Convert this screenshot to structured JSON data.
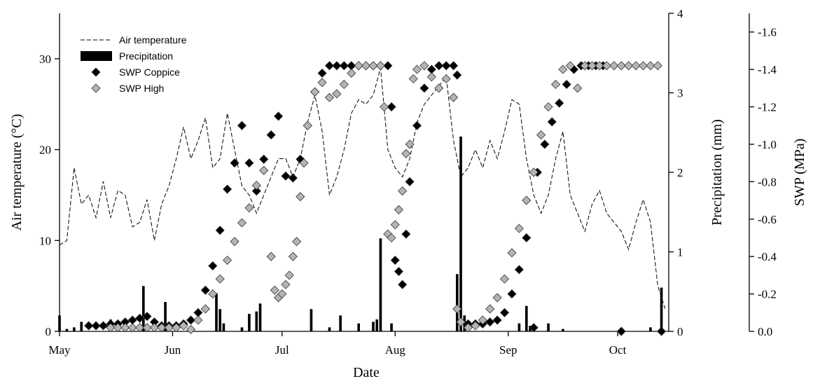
{
  "chart_data": {
    "type": "combo",
    "x_label": "Date",
    "y_label": "Air temperature (°C)",
    "y2_label": "Precipitation (mm)",
    "y3_label": "SWP (MPa)",
    "xlim": [
      0,
      167
    ],
    "xticks": [
      {
        "value": 0,
        "label": "May"
      },
      {
        "value": 31,
        "label": "Jun"
      },
      {
        "value": 61,
        "label": "Jul"
      },
      {
        "value": 92,
        "label": "Aug"
      },
      {
        "value": 123,
        "label": "Sep"
      },
      {
        "value": 153,
        "label": "Oct"
      }
    ],
    "ylim": [
      0,
      35
    ],
    "yticks": [
      0,
      10,
      20,
      30
    ],
    "y2lim": [
      0,
      4
    ],
    "y2ticks": [
      0,
      1,
      2,
      3,
      4
    ],
    "y3lim": [
      0,
      -1.7
    ],
    "y3ticks": [
      {
        "value": 0,
        "label": "0.0"
      },
      -0.2,
      -0.4,
      -0.6,
      -0.8,
      {
        "value": -1,
        "label": "-1.0"
      },
      -1.2,
      -1.4,
      -1.6
    ],
    "legend": "top-left",
    "series": [
      {
        "name": "Air temperature",
        "kind": "line",
        "axis": "y",
        "color": "#000000",
        "x": [
          0,
          2,
          4,
          6,
          8,
          10,
          12,
          14,
          16,
          18,
          20,
          22,
          24,
          26,
          28,
          30,
          32,
          34,
          36,
          38,
          40,
          42,
          44,
          46,
          48,
          50,
          52,
          54,
          56,
          58,
          60,
          62,
          64,
          66,
          68,
          70,
          72,
          74,
          76,
          78,
          80,
          82,
          84,
          86,
          88,
          90,
          92,
          94,
          96,
          98,
          100,
          102,
          104,
          106,
          108,
          110,
          112,
          114,
          116,
          118,
          120,
          122,
          124,
          126,
          128,
          130,
          132,
          134,
          136,
          138,
          140,
          142,
          144,
          146,
          148,
          150,
          152,
          154,
          156,
          158,
          160,
          162,
          164,
          166
        ],
        "values": [
          9.5,
          10,
          18,
          14,
          15,
          12.5,
          16.5,
          12.5,
          15.5,
          15,
          11.5,
          12,
          14.5,
          10,
          14,
          16,
          19,
          22.5,
          19,
          21,
          23.5,
          18,
          19,
          24,
          20,
          16,
          15,
          13,
          15,
          17,
          19,
          19,
          17,
          19,
          23,
          26,
          22,
          15,
          17,
          20,
          24,
          25.5,
          25,
          26,
          29,
          20,
          18,
          17,
          19,
          23,
          25,
          26,
          27,
          28,
          21,
          17,
          18,
          20,
          18,
          21,
          19,
          22,
          25.5,
          25,
          19,
          15,
          13,
          15,
          19,
          22,
          15,
          13,
          11,
          14,
          15.5,
          13,
          12,
          11,
          9,
          12,
          14.5,
          12,
          5,
          2.5
        ]
      },
      {
        "name": "Precipitation",
        "kind": "bar",
        "axis": "y2",
        "color": "#000000",
        "x": [
          0,
          2,
          4,
          6,
          14,
          23,
          29,
          43,
          44,
          45,
          50,
          52,
          54,
          55,
          69,
          74,
          77,
          82,
          86,
          87,
          88,
          91,
          109,
          110,
          111,
          112,
          126,
          128,
          129,
          134,
          138,
          162,
          165
        ],
        "values": [
          0.2,
          0.03,
          0.05,
          0.12,
          0.15,
          0.57,
          0.37,
          0.48,
          0.28,
          0.1,
          0.05,
          0.22,
          0.25,
          0.35,
          0.28,
          0.05,
          0.2,
          0.1,
          0.12,
          0.15,
          1.17,
          0.1,
          0.72,
          2.45,
          0.2,
          0.1,
          0.1,
          0.32,
          0.07,
          0.1,
          0.03,
          0.05,
          0.55
        ]
      },
      {
        "name": "SWP Coppice",
        "kind": "scatter",
        "axis": "y3",
        "color": "#000000",
        "x": [
          8,
          10,
          12,
          14,
          16,
          18,
          20,
          22,
          24,
          26,
          28,
          30,
          32,
          34,
          36,
          38,
          40,
          42,
          44,
          46,
          48,
          50,
          52,
          54,
          56,
          58,
          60,
          62,
          64,
          66,
          68,
          70,
          72,
          74,
          76,
          78,
          80,
          82,
          84,
          86,
          88,
          90,
          91,
          92,
          93,
          94,
          95,
          96,
          98,
          100,
          102,
          104,
          106,
          108,
          109,
          110,
          112,
          114,
          116,
          118,
          120,
          122,
          124,
          126,
          128,
          130,
          131,
          133,
          135,
          137,
          139,
          141,
          143,
          145,
          147,
          149,
          154,
          165
        ],
        "values": [
          -0.03,
          -0.03,
          -0.03,
          -0.04,
          -0.04,
          -0.05,
          -0.06,
          -0.07,
          -0.08,
          -0.05,
          -0.03,
          -0.03,
          -0.03,
          -0.04,
          -0.06,
          -0.1,
          -0.22,
          -0.35,
          -0.54,
          -0.76,
          -0.9,
          -1.1,
          -0.9,
          -0.75,
          -0.92,
          -1.05,
          -1.15,
          -0.83,
          -0.82,
          -0.92,
          -1.1,
          -1.28,
          -1.38,
          -1.42,
          -1.42,
          -1.42,
          -1.42,
          -1.42,
          -1.42,
          -1.42,
          -1.42,
          -1.42,
          -1.2,
          -0.38,
          -0.32,
          -0.25,
          -0.52,
          -0.8,
          -1.1,
          -1.3,
          -1.4,
          -1.42,
          -1.42,
          -1.42,
          -1.37,
          -0.05,
          -0.04,
          -0.04,
          -0.04,
          -0.05,
          -0.06,
          -0.1,
          -0.2,
          -0.33,
          -0.5,
          -0.02,
          -0.85,
          -1.0,
          -1.12,
          -1.22,
          -1.32,
          -1.4,
          -1.42,
          -1.42,
          -1.42,
          -1.42,
          0,
          0
        ]
      },
      {
        "name": "SWP High",
        "kind": "scatter",
        "axis": "y3",
        "color": "#b4b4b4",
        "x": [
          14,
          16,
          18,
          20,
          22,
          24,
          26,
          28,
          30,
          32,
          34,
          36,
          38,
          40,
          42,
          44,
          46,
          48,
          50,
          52,
          54,
          56,
          58,
          59,
          60,
          61,
          62,
          63,
          64,
          65,
          66,
          67,
          68,
          70,
          72,
          74,
          76,
          78,
          80,
          82,
          84,
          86,
          88,
          89,
          90,
          91,
          92,
          93,
          94,
          95,
          96,
          97,
          98,
          100,
          102,
          104,
          106,
          108,
          109,
          110,
          112,
          114,
          116,
          118,
          120,
          122,
          124,
          126,
          128,
          130,
          132,
          134,
          136,
          138,
          140,
          142,
          144,
          146,
          148,
          150,
          152,
          154,
          156,
          158,
          160,
          162,
          164
        ],
        "values": [
          -0.02,
          -0.02,
          -0.02,
          -0.02,
          -0.02,
          -0.02,
          -0.02,
          -0.02,
          -0.02,
          -0.02,
          -0.03,
          -0.01,
          -0.06,
          -0.12,
          -0.2,
          -0.28,
          -0.38,
          -0.48,
          -0.58,
          -0.66,
          -0.78,
          -0.86,
          -0.4,
          -0.22,
          -0.18,
          -0.2,
          -0.25,
          -0.3,
          -0.4,
          -0.48,
          -0.72,
          -0.9,
          -1.1,
          -1.28,
          -1.33,
          -1.25,
          -1.27,
          -1.32,
          -1.38,
          -1.42,
          -1.42,
          -1.42,
          -1.42,
          -1.2,
          -0.52,
          -0.5,
          -0.57,
          -0.65,
          -0.75,
          -0.95,
          -1.0,
          -1.35,
          -1.4,
          -1.42,
          -1.36,
          -1.3,
          -1.35,
          -1.25,
          -0.12,
          -0.05,
          -0.02,
          -0.03,
          -0.06,
          -0.12,
          -0.18,
          -0.28,
          -0.42,
          -0.55,
          -0.7,
          -0.85,
          -1.05,
          -1.2,
          -1.32,
          -1.4,
          -1.42,
          -1.3,
          -1.42,
          -1.42,
          -1.42,
          -1.42,
          -1.42,
          -1.42,
          -1.42,
          -1.42,
          -1.42,
          -1.42,
          -1.42
        ]
      }
    ]
  }
}
